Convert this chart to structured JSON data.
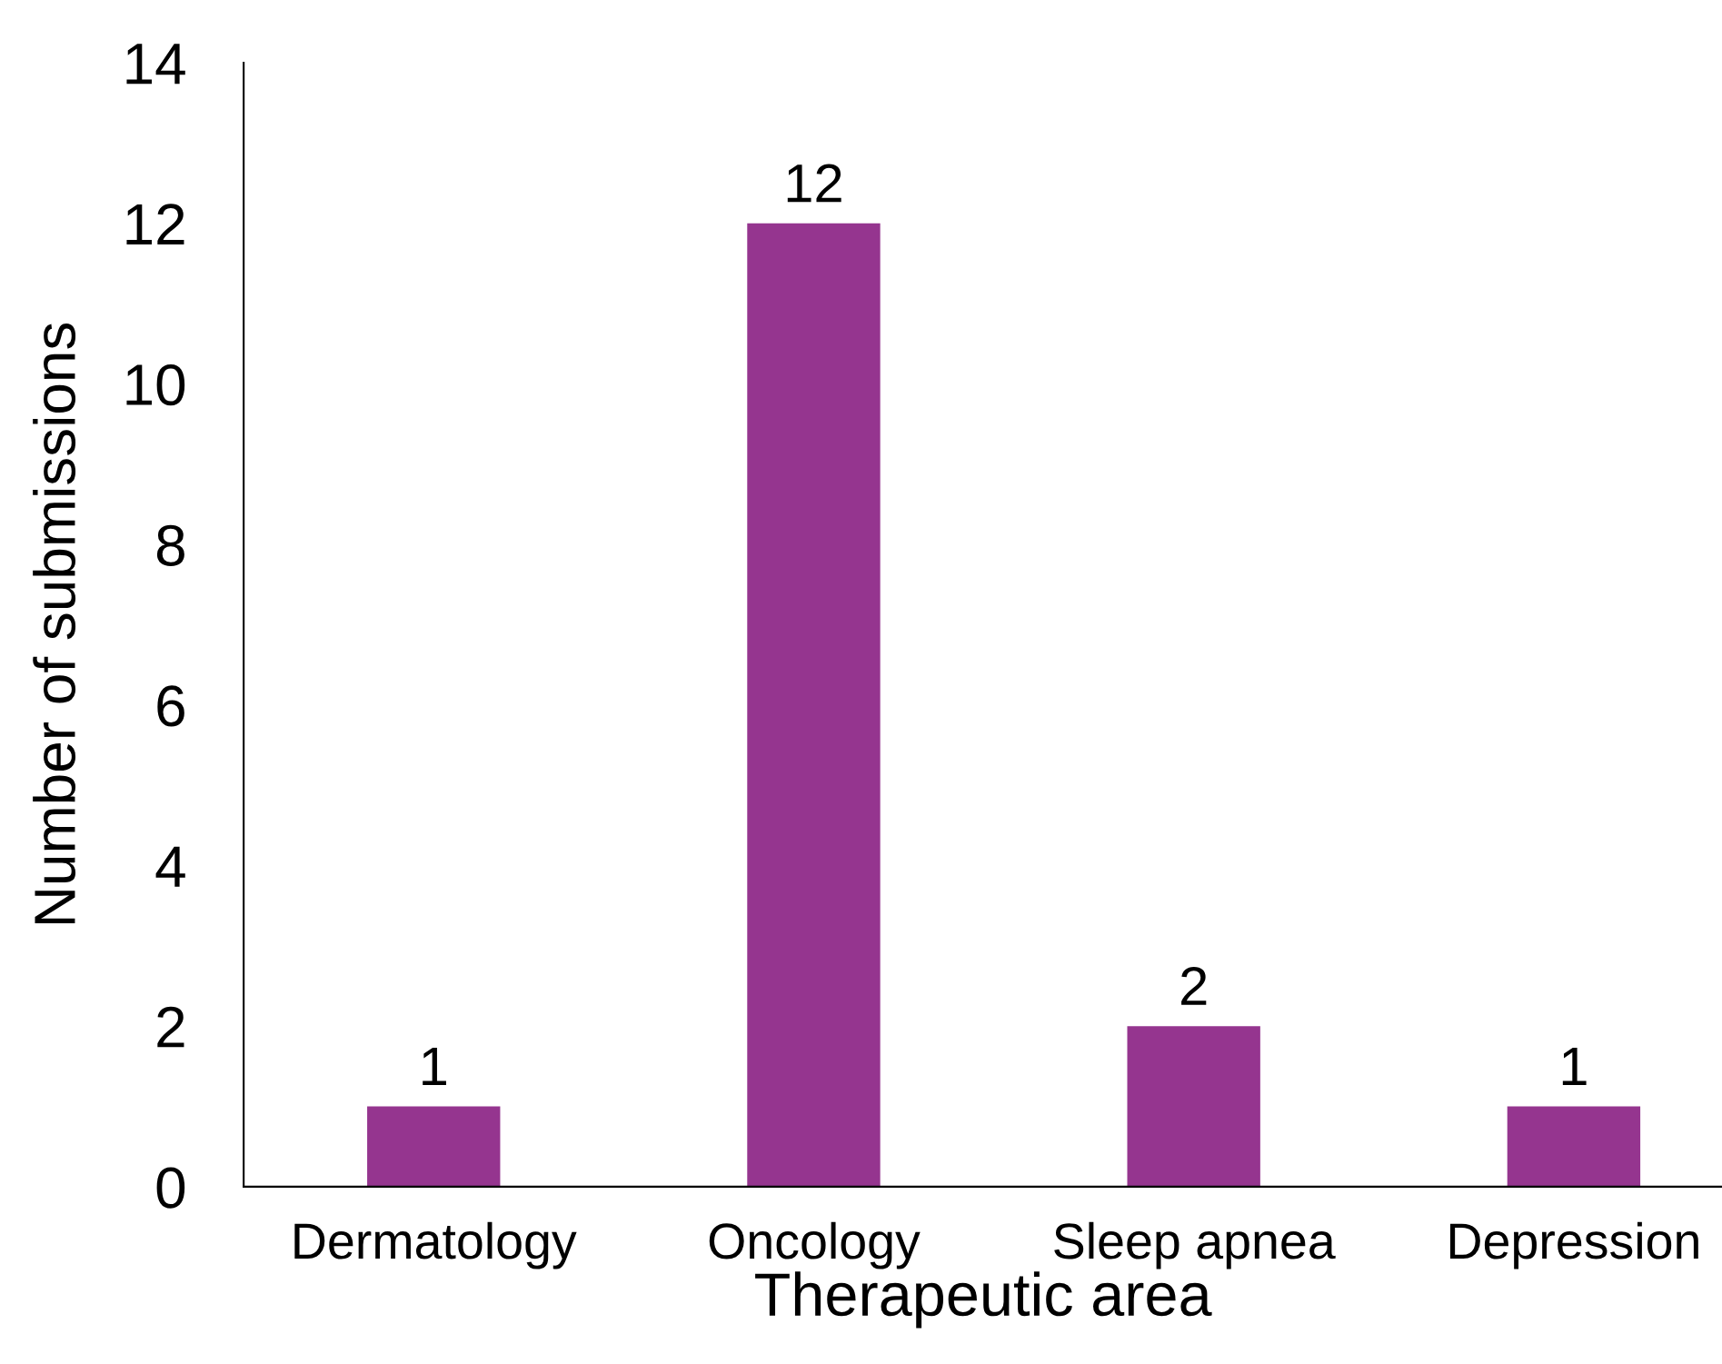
{
  "chart_data": {
    "type": "bar",
    "xlabel": "Therapeutic area",
    "ylabel": "Number of submissions",
    "categories": [
      "Dermatology",
      "Oncology",
      "Sleep apnea",
      "Depression"
    ],
    "values": [
      1,
      12,
      2,
      1
    ],
    "color": "#95358f",
    "ylim": [
      0,
      14
    ],
    "yticks": [
      0,
      2,
      4,
      6,
      8,
      10,
      12,
      14
    ],
    "grid": false,
    "data_labels": true
  }
}
